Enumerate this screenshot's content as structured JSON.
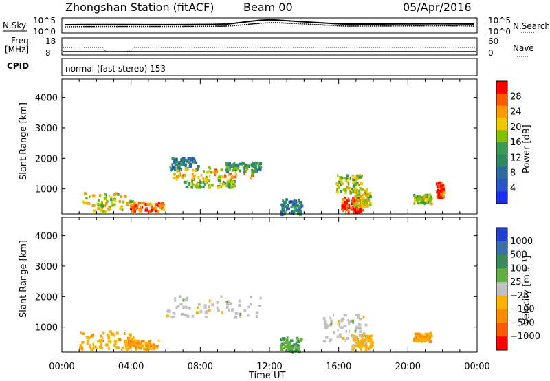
{
  "header": {
    "station": "Zhongshan Station (fitACF)",
    "beam": "Beam 00",
    "date": "05/Apr/2016"
  },
  "panels": {
    "nsky_label": "N.Sky",
    "nsearch_label": "N.Search",
    "nsky_ticks": [
      "10^5",
      "10^0"
    ],
    "nsearch_ticks": [
      "10^5",
      "10^0"
    ],
    "freq_label_1": "Freq.",
    "freq_label_2": "[MHz]",
    "freq_ticks": [
      "18",
      "8"
    ],
    "nave_label": "Nave",
    "nave_ticks": [
      "60",
      "0"
    ],
    "cpid_label": "CPID",
    "cpid_text": "normal (fast stereo) 153"
  },
  "chart_data": [
    {
      "type": "heatmap",
      "name": "power",
      "xlabel": "",
      "ylabel": "Slant Range [km]",
      "x_ticks": [
        "00:00",
        "04:00",
        "08:00",
        "12:00",
        "16:00",
        "20:00",
        "00:00"
      ],
      "y_ticks": [
        1000,
        2000,
        3000,
        4000
      ],
      "ylim": [
        180,
        4600
      ],
      "colorbar_label": "Power [dB]",
      "colorbar_ticks": [
        "28",
        "24",
        "20",
        "16",
        "12",
        "8",
        "4"
      ],
      "colorbar_colors": [
        "#ff0000",
        "#ff5a00",
        "#ff9a00",
        "#f0c800",
        "#80c000",
        "#3a9a50",
        "#2e8a62",
        "#2a6aa0",
        "#2a55c8",
        "#1a30f0"
      ],
      "blobs": [
        {
          "t": 2.6,
          "r": 600,
          "dt": 1.4,
          "dr": 300,
          "v": 20
        },
        {
          "t": 4.8,
          "r": 450,
          "dt": 1.1,
          "dr": 150,
          "v": 26
        },
        {
          "t": 7.0,
          "r": 1850,
          "dt": 0.8,
          "dr": 200,
          "v": 10
        },
        {
          "t": 8.8,
          "r": 1550,
          "dt": 2.4,
          "dr": 200,
          "v": 22
        },
        {
          "t": 10.4,
          "r": 1750,
          "dt": 1.0,
          "dr": 150,
          "v": 12
        },
        {
          "t": 8.5,
          "r": 1200,
          "dt": 1.5,
          "dr": 120,
          "v": 16
        },
        {
          "t": 13.2,
          "r": 450,
          "dt": 0.6,
          "dr": 250,
          "v": 10
        },
        {
          "t": 16.5,
          "r": 1200,
          "dt": 0.8,
          "dr": 300,
          "v": 18
        },
        {
          "t": 16.7,
          "r": 500,
          "dt": 0.6,
          "dr": 250,
          "v": 30
        },
        {
          "t": 17.3,
          "r": 750,
          "dt": 0.5,
          "dr": 300,
          "v": 20
        },
        {
          "t": 20.8,
          "r": 700,
          "dt": 0.5,
          "dr": 150,
          "v": 18
        },
        {
          "t": 21.8,
          "r": 1000,
          "dt": 0.2,
          "dr": 250,
          "v": 28
        }
      ]
    },
    {
      "type": "heatmap",
      "name": "velocity",
      "xlabel": "Time UT",
      "ylabel": "Slant Range [km]",
      "x_ticks": [
        "00:00",
        "04:00",
        "08:00",
        "12:00",
        "16:00",
        "20:00",
        "00:00"
      ],
      "y_ticks": [
        1000,
        2000,
        3000,
        4000
      ],
      "ylim": [
        180,
        4600
      ],
      "colorbar_label": "Velocity [m s⁻¹]",
      "colorbar_ticks": [
        "1000",
        "500",
        "100",
        "25",
        "−25",
        "−100",
        "−500",
        "−1000"
      ],
      "colorbar_colors": [
        "#2040d0",
        "#3a70a8",
        "#3a8a5a",
        "#60b040",
        "#c0c0c0",
        "#ffb000",
        "#ff8a00",
        "#ff5a00",
        "#ff0000"
      ],
      "blobs": [
        {
          "t": 2.5,
          "r": 600,
          "dt": 1.6,
          "dr": 300,
          "v": -300
        },
        {
          "t": 4.6,
          "r": 450,
          "dt": 1.0,
          "dr": 150,
          "v": -400
        },
        {
          "t": 8.8,
          "r": 1700,
          "dt": 2.8,
          "dr": 350,
          "v": 0
        },
        {
          "t": 13.2,
          "r": 450,
          "dt": 0.6,
          "dr": 250,
          "v": 300
        },
        {
          "t": 16.3,
          "r": 1000,
          "dt": 1.3,
          "dr": 450,
          "v": 0
        },
        {
          "t": 17.3,
          "r": 550,
          "dt": 0.6,
          "dr": 250,
          "v": -200
        },
        {
          "t": 20.8,
          "r": 700,
          "dt": 0.5,
          "dr": 150,
          "v": -400
        }
      ]
    }
  ]
}
